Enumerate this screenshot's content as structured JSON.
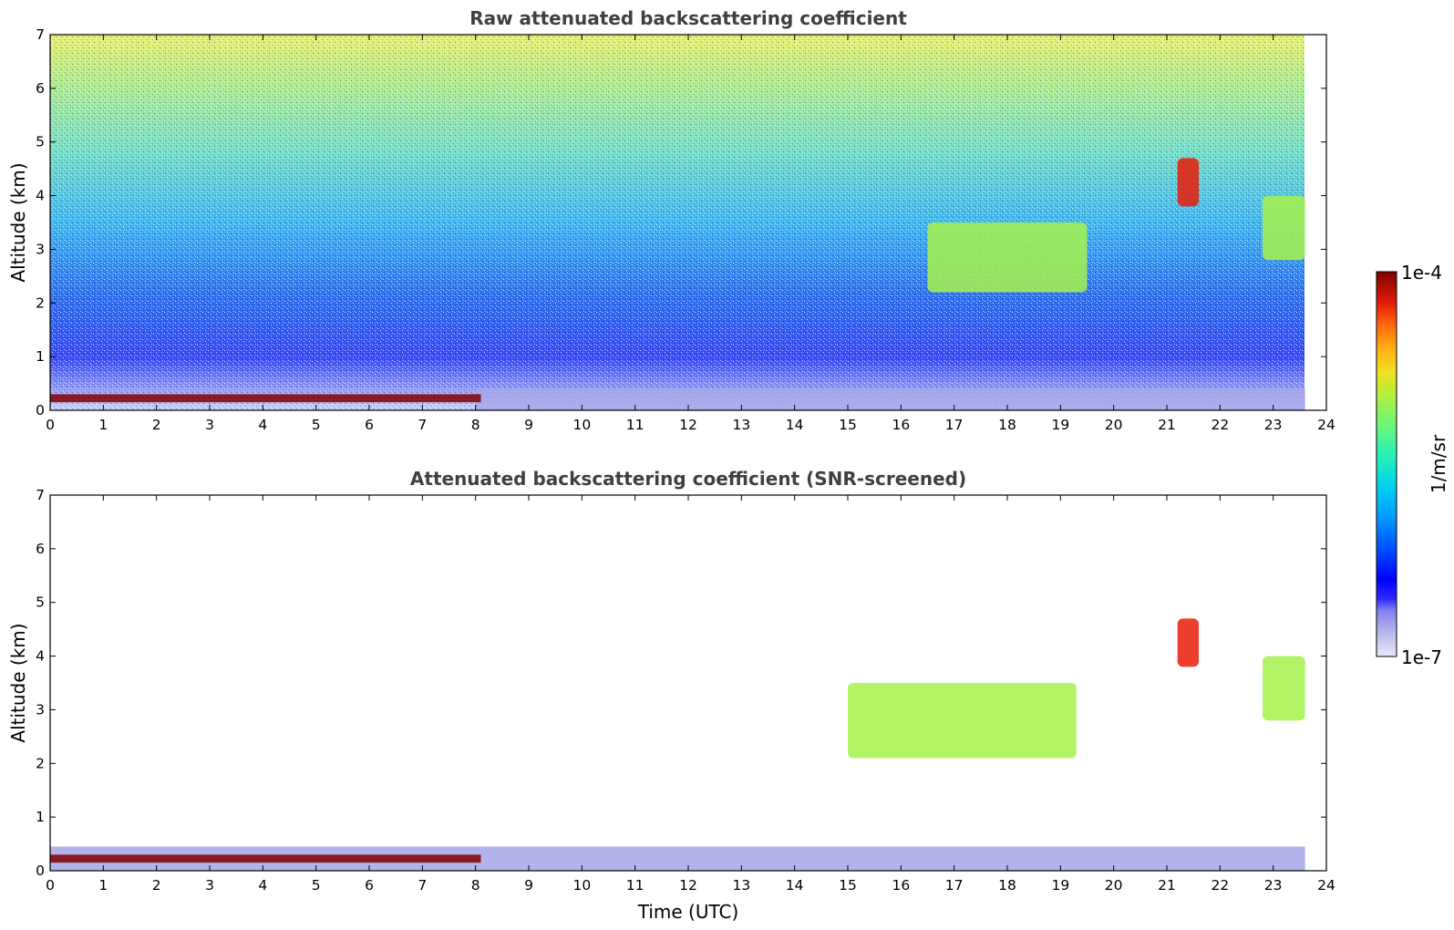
{
  "chart_data": {
    "type": "heatmap",
    "colorbar": {
      "label": "1/m/sr",
      "min_label": "1e-7",
      "max_label": "1e-4",
      "scale": "log",
      "range": [
        1e-07,
        0.0001
      ],
      "colormap": [
        "#e9e9f7",
        "#c9c9f0",
        "#a7a7ea",
        "#7f7ff3",
        "#2a2aff",
        "#0000ff",
        "#0030ff",
        "#0070ff",
        "#00a8ff",
        "#00d6e8",
        "#26f0b8",
        "#69f77a",
        "#a6f24b",
        "#d8ea2a",
        "#fbd41e",
        "#ff9a12",
        "#ff5a0a",
        "#e81c08",
        "#b00000",
        "#800000"
      ]
    },
    "panels": [
      {
        "title": "Raw attenuated backscattering coefficient",
        "xlabel": "",
        "ylabel": "Altitude (km)",
        "xlim": [
          0,
          24
        ],
        "ylim": [
          0,
          7
        ],
        "xticks": [
          "0",
          "1",
          "2",
          "3",
          "4",
          "5",
          "6",
          "7",
          "8",
          "9",
          "10",
          "11",
          "12",
          "13",
          "14",
          "15",
          "16",
          "17",
          "18",
          "19",
          "20",
          "21",
          "22",
          "23",
          "24"
        ],
        "yticks": [
          "0",
          "1",
          "2",
          "3",
          "4",
          "5",
          "6",
          "7"
        ],
        "data_extent_hours": [
          0,
          23.6
        ],
        "layers": [
          {
            "feature": "background noise",
            "value": 3e-06,
            "alt_range": [
              1,
              7
            ]
          },
          {
            "feature": "boundary layer",
            "value": 2e-07,
            "alt_range": [
              0,
              0.4
            ],
            "time_range": [
              8,
              23.6
            ]
          },
          {
            "feature": "dense aerosol layer",
            "value": 9e-05,
            "alt_range": [
              0.15,
              0.3
            ],
            "time_range": [
              0,
              8.1
            ]
          },
          {
            "feature": "cloud",
            "value": 8e-06,
            "alt_range": [
              2.2,
              3.5
            ],
            "time_range": [
              16.5,
              19.5
            ]
          },
          {
            "feature": "cloud",
            "value": 5e-05,
            "alt_range": [
              3.8,
              4.7
            ],
            "time_range": [
              21.2,
              21.6
            ]
          },
          {
            "feature": "cloud",
            "value": 8e-06,
            "alt_range": [
              2.8,
              4.0
            ],
            "time_range": [
              22.8,
              23.6
            ]
          }
        ]
      },
      {
        "title": "Attenuated backscattering coefficient (SNR-screened)",
        "xlabel": "Time (UTC)",
        "ylabel": "Altitude (km)",
        "xlim": [
          0,
          24
        ],
        "ylim": [
          0,
          7
        ],
        "xticks": [
          "0",
          "1",
          "2",
          "3",
          "4",
          "5",
          "6",
          "7",
          "8",
          "9",
          "10",
          "11",
          "12",
          "13",
          "14",
          "15",
          "16",
          "17",
          "18",
          "19",
          "20",
          "21",
          "22",
          "23",
          "24"
        ],
        "yticks": [
          "0",
          "1",
          "2",
          "3",
          "4",
          "5",
          "6",
          "7"
        ],
        "data_extent_hours": [
          0,
          23.6
        ],
        "layers": [
          {
            "feature": "boundary layer",
            "value": 2e-07,
            "alt_range": [
              0,
              0.45
            ],
            "time_range": [
              0,
              23.6
            ]
          },
          {
            "feature": "dense aerosol layer",
            "value": 9e-05,
            "alt_range": [
              0.15,
              0.3
            ],
            "time_range": [
              0,
              8.1
            ]
          },
          {
            "feature": "cloud",
            "value": 8e-06,
            "alt_range": [
              2.1,
              3.5
            ],
            "time_range": [
              15,
              19.3
            ]
          },
          {
            "feature": "cloud",
            "value": 5e-05,
            "alt_range": [
              3.8,
              4.7
            ],
            "time_range": [
              21.2,
              21.6
            ]
          },
          {
            "feature": "cloud",
            "value": 8e-06,
            "alt_range": [
              2.8,
              4.0
            ],
            "time_range": [
              22.8,
              23.6
            ]
          }
        ]
      }
    ]
  }
}
